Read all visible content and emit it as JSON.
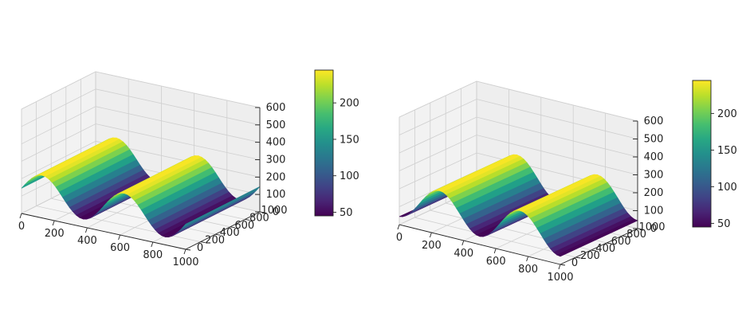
{
  "chart_data": [
    {
      "type": "surface3d",
      "x_ticks": [
        0,
        200,
        400,
        600,
        800,
        1000
      ],
      "y_ticks": [
        0,
        200,
        400,
        600,
        800,
        1000
      ],
      "z_ticks": [
        0,
        100,
        200,
        300,
        400,
        500,
        600
      ],
      "xlim": [
        0,
        1000
      ],
      "ylim": [
        0,
        1000
      ],
      "zlim": [
        0,
        600
      ],
      "surface": {
        "function": "sine_along_x",
        "amplitude": 100,
        "offset": 145,
        "period": 500,
        "phase_offset_x": 0
      },
      "colorbar": {
        "ticks": [
          50,
          100,
          150,
          200
        ],
        "range": [
          45,
          245
        ],
        "colormap": "viridis"
      },
      "grid": true
    },
    {
      "type": "surface3d",
      "x_ticks": [
        0,
        200,
        400,
        600,
        800,
        1000
      ],
      "y_ticks": [
        0,
        200,
        400,
        600,
        800,
        1000
      ],
      "z_ticks": [
        0,
        100,
        200,
        300,
        400,
        500,
        600
      ],
      "xlim": [
        0,
        1000
      ],
      "ylim": [
        0,
        1000
      ],
      "zlim": [
        0,
        600
      ],
      "surface": {
        "function": "sine_along_x",
        "amplitude": 100,
        "offset": 145,
        "period": 500,
        "phase_offset_x": 125
      },
      "colorbar": {
        "ticks": [
          50,
          100,
          150,
          200
        ],
        "range": [
          45,
          245
        ],
        "colormap": "viridis"
      },
      "grid": true
    }
  ]
}
